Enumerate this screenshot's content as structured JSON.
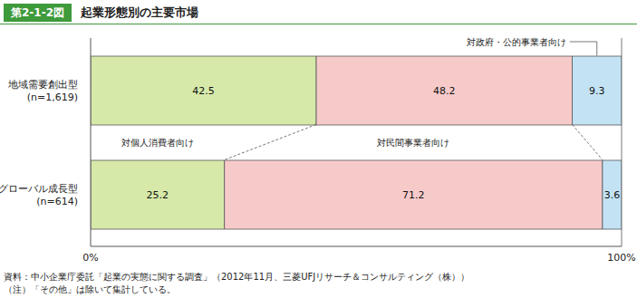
{
  "chart_data": {
    "type": "bar",
    "orientation": "horizontal",
    "stacked": true,
    "data_labels": true,
    "figure_label": "第2-1-2図",
    "title": "起業形態別の主要市場",
    "categories": [
      "地域需要創出型(n=1,619)",
      "グローバル成長型(n=614)"
    ],
    "series": [
      {
        "name": "対個人消費者向け",
        "color": "#d6e9a9",
        "values": [
          42.5,
          25.2
        ]
      },
      {
        "name": "対民間事業者向け",
        "color": "#f7caca",
        "values": [
          48.2,
          71.2
        ]
      },
      {
        "name": "対政府・公的事業者向け",
        "color": "#c3e3f5",
        "values": [
          9.3,
          3.6
        ]
      }
    ],
    "xlim": [
      0,
      100
    ],
    "xticks": [
      {
        "value": 0,
        "label": "0%"
      },
      {
        "value": 100,
        "label": "100%"
      }
    ],
    "notes": [
      "資料：中小企業庁委託「起業の実態に関する調査」（2012年11月、三菱UFJリサーチ＆コンサルティング（株））",
      "（注）「その他」は除いて集計している。"
    ]
  }
}
